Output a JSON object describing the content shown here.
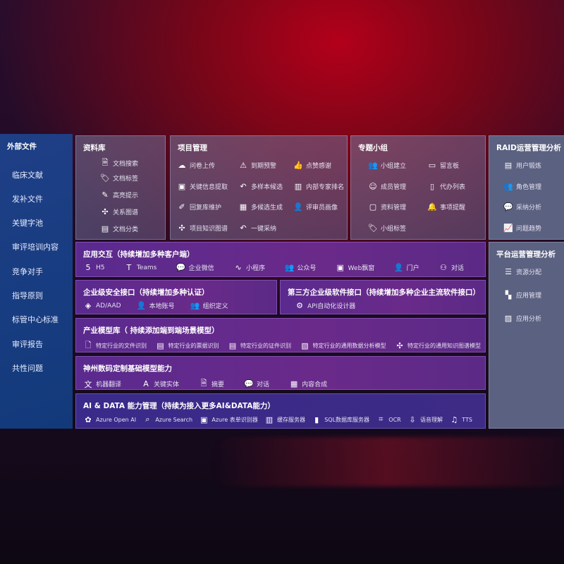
{
  "left": {
    "title": "外部文件",
    "items": [
      "临床文献",
      "发补文件",
      "关键字池",
      "审评培训内容",
      "竞争对手",
      "指导原则",
      "标管中心标准",
      "审评报告",
      "共性问题"
    ]
  },
  "library": {
    "title": "资料库",
    "items": [
      {
        "icon": "doc-search-icon",
        "label": "文档搜索"
      },
      {
        "icon": "tag-icon",
        "label": "文档标签"
      },
      {
        "icon": "pen-icon",
        "label": "高亮提示"
      },
      {
        "icon": "graph-icon",
        "label": "关系图谱"
      },
      {
        "icon": "doc-category-icon",
        "label": "文档分类"
      }
    ]
  },
  "project": {
    "title": "项目管理",
    "items": [
      {
        "icon": "cloud-upload-icon",
        "label": "问卷上传"
      },
      {
        "icon": "alarm-icon",
        "label": "到期预警"
      },
      {
        "icon": "thumbs-up-icon",
        "label": "点赞感谢"
      },
      {
        "icon": "window-icon",
        "label": "关键信息提取"
      },
      {
        "icon": "reply-icon",
        "label": "多样本候选"
      },
      {
        "icon": "ranking-icon",
        "label": "内部专家排名"
      },
      {
        "icon": "edit-icon",
        "label": "回复库维护"
      },
      {
        "icon": "puzzle-icon",
        "label": "多候选生成"
      },
      {
        "icon": "person-icon",
        "label": "评审员画像"
      },
      {
        "icon": "graph-icon",
        "label": "项目知识图谱"
      },
      {
        "icon": "reply-icon",
        "label": "一键采纳"
      }
    ]
  },
  "group": {
    "title": "专题小组",
    "items": [
      {
        "icon": "users-icon",
        "label": "小组建立"
      },
      {
        "icon": "bbs-icon",
        "label": "留言板"
      },
      {
        "icon": "user-add-icon",
        "label": "成员管理"
      },
      {
        "icon": "clipboard-icon",
        "label": "代办列表"
      },
      {
        "icon": "folder-icon",
        "label": "资料管理"
      },
      {
        "icon": "bell-icon",
        "label": "事项提醒"
      },
      {
        "icon": "tag-icon",
        "label": "小组标签"
      }
    ]
  },
  "raid": {
    "title": "RAID运营管理分析",
    "items": [
      {
        "icon": "id-card-icon",
        "label": "用户锻炼"
      },
      {
        "icon": "users-icon",
        "label": "角色管理"
      },
      {
        "icon": "qa-icon",
        "label": "采纳分析"
      },
      {
        "icon": "trend-icon",
        "label": "问题趋势"
      }
    ]
  },
  "platform": {
    "title": "平台运营管理分析",
    "items": [
      {
        "icon": "checklist-icon",
        "label": "资源分配"
      },
      {
        "icon": "apps-icon",
        "label": "应用管理"
      },
      {
        "icon": "chart-icon",
        "label": "应用分析"
      }
    ]
  },
  "interaction": {
    "title": "应用交互（持续增加多种客户端）",
    "items": [
      {
        "icon": "html5-icon",
        "label": "H5"
      },
      {
        "icon": "teams-icon",
        "label": "Teams"
      },
      {
        "icon": "wechat-icon",
        "label": "企业微信"
      },
      {
        "icon": "miniprogram-icon",
        "label": "小程序"
      },
      {
        "icon": "users-icon",
        "label": "公众号"
      },
      {
        "icon": "window-icon",
        "label": "Web飘窗"
      },
      {
        "icon": "portal-icon",
        "label": "门户"
      },
      {
        "icon": "chat-users-icon",
        "label": "对话"
      }
    ]
  },
  "security": {
    "title": "企业级安全接口（持续增加多种认证）",
    "items": [
      {
        "icon": "ad-icon",
        "label": "AD/AAD"
      },
      {
        "icon": "local-account-icon",
        "label": "本地账号"
      },
      {
        "icon": "org-icon",
        "label": "组织定义"
      }
    ]
  },
  "thirdparty": {
    "title": "第三方企业级软件接口（持续增加多种企业主流软件接口）",
    "items": [
      {
        "icon": "gear-icon",
        "label": "API自动化设计器"
      }
    ]
  },
  "industry": {
    "title": "产业模型库（ 持续添加端到端场景模型）",
    "items": [
      {
        "icon": "file-icon",
        "label": "特定行业的文件识别"
      },
      {
        "icon": "receipt-icon",
        "label": "特定行业的票据识别"
      },
      {
        "icon": "id-card-icon",
        "label": "特定行业的证件识别"
      },
      {
        "icon": "image-icon",
        "label": "特定行业的通用数据分析模型"
      },
      {
        "icon": "graph-icon",
        "label": "特定行业的通用知识图谱模型"
      }
    ]
  },
  "base": {
    "title": "神州数码定制基础模型能力",
    "items": [
      {
        "icon": "translate-icon",
        "label": "机器翻译"
      },
      {
        "icon": "entity-icon",
        "label": "关键实体"
      },
      {
        "icon": "summary-icon",
        "label": "摘要"
      },
      {
        "icon": "chat-icon",
        "label": "对话"
      },
      {
        "icon": "puzzle-icon",
        "label": "内容合成"
      }
    ]
  },
  "aidata": {
    "title": "AI & DATA 能力管理（持续为接入更多AI&DATA能力）",
    "items": [
      {
        "icon": "openai-icon",
        "label": "Azure Open AI"
      },
      {
        "icon": "search-doc-icon",
        "label": "Azure Search"
      },
      {
        "icon": "form-icon",
        "label": "Azure 表单识别器"
      },
      {
        "icon": "cache-icon",
        "label": "缓存服务器"
      },
      {
        "icon": "sql-icon",
        "label": "SQL数据库服务器"
      },
      {
        "icon": "ocr-icon",
        "label": "OCR"
      },
      {
        "icon": "speech-icon",
        "label": "语音理解"
      },
      {
        "icon": "tts-icon",
        "label": "TTS"
      }
    ]
  }
}
